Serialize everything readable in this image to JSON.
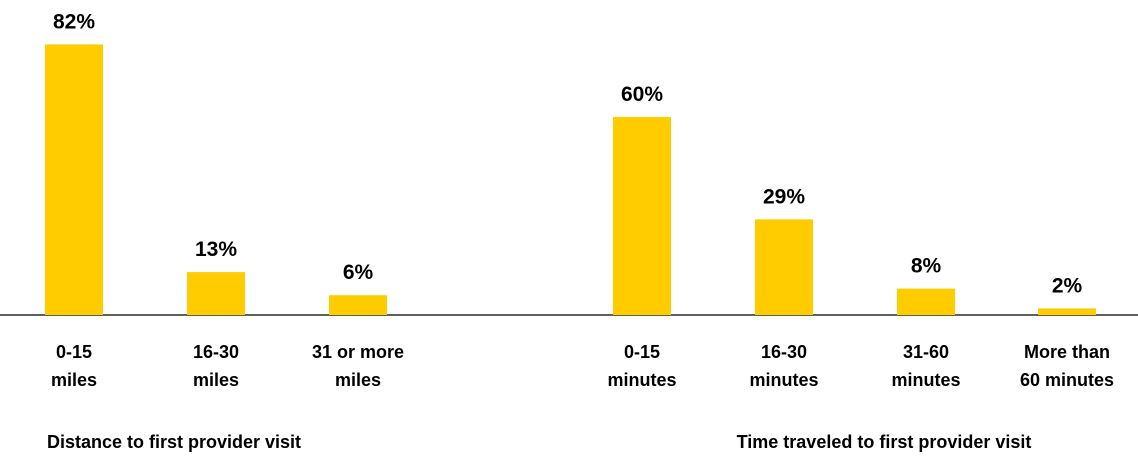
{
  "chart_data": {
    "type": "bar",
    "bar_color": "#FFCC00",
    "axis_color": "#000000",
    "groups": [
      {
        "title": "Distance to first provider visit",
        "categories": [
          [
            "0-15",
            "miles"
          ],
          [
            "16-30",
            "miles"
          ],
          [
            "31 or more",
            "miles"
          ]
        ],
        "values": [
          82,
          13,
          6
        ],
        "value_labels": [
          "82%",
          "13%",
          "6%"
        ]
      },
      {
        "title": "Time traveled to first provider visit",
        "categories": [
          [
            "0-15",
            "minutes"
          ],
          [
            "16-30",
            "minutes"
          ],
          [
            "31-60",
            "minutes"
          ],
          [
            "More than",
            "60 minutes"
          ]
        ],
        "values": [
          60,
          29,
          8,
          2
        ],
        "value_labels": [
          "60%",
          "29%",
          "8%",
          "2%"
        ]
      }
    ],
    "ylim": [
      0,
      100
    ],
    "grid": false,
    "legend": "none"
  }
}
